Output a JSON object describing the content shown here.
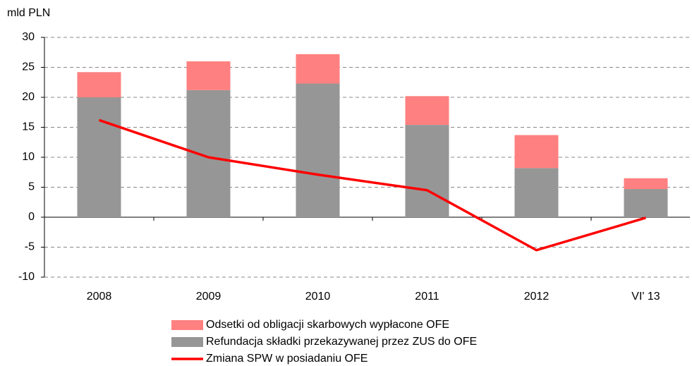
{
  "chart_data": {
    "type": "bar",
    "y_axis_label": "mld PLN",
    "categories": [
      "2008",
      "2009",
      "2010",
      "2011",
      "2012",
      "VI' 13"
    ],
    "series": [
      {
        "name": "Refundacja składki przekazywanej przez ZUS do OFE",
        "type": "bar",
        "color": "#969696",
        "values": [
          20.0,
          21.2,
          22.3,
          15.4,
          8.2,
          4.7
        ]
      },
      {
        "name": "Odsetki od obligacji skarbowych wypłacone OFE",
        "type": "bar",
        "color": "#ff8080",
        "values": [
          4.2,
          4.8,
          4.9,
          4.8,
          5.5,
          1.8
        ]
      },
      {
        "name": "Zmiana SPW w posiadaniu OFE",
        "type": "line",
        "color": "#ff0000",
        "values": [
          16.2,
          10.0,
          7.1,
          4.5,
          -5.5,
          -0.1
        ]
      }
    ],
    "stacked": true,
    "ylim": [
      -10,
      30
    ],
    "yticks": [
      -10,
      -5,
      0,
      5,
      10,
      15,
      20,
      25,
      30
    ],
    "grid": true
  }
}
